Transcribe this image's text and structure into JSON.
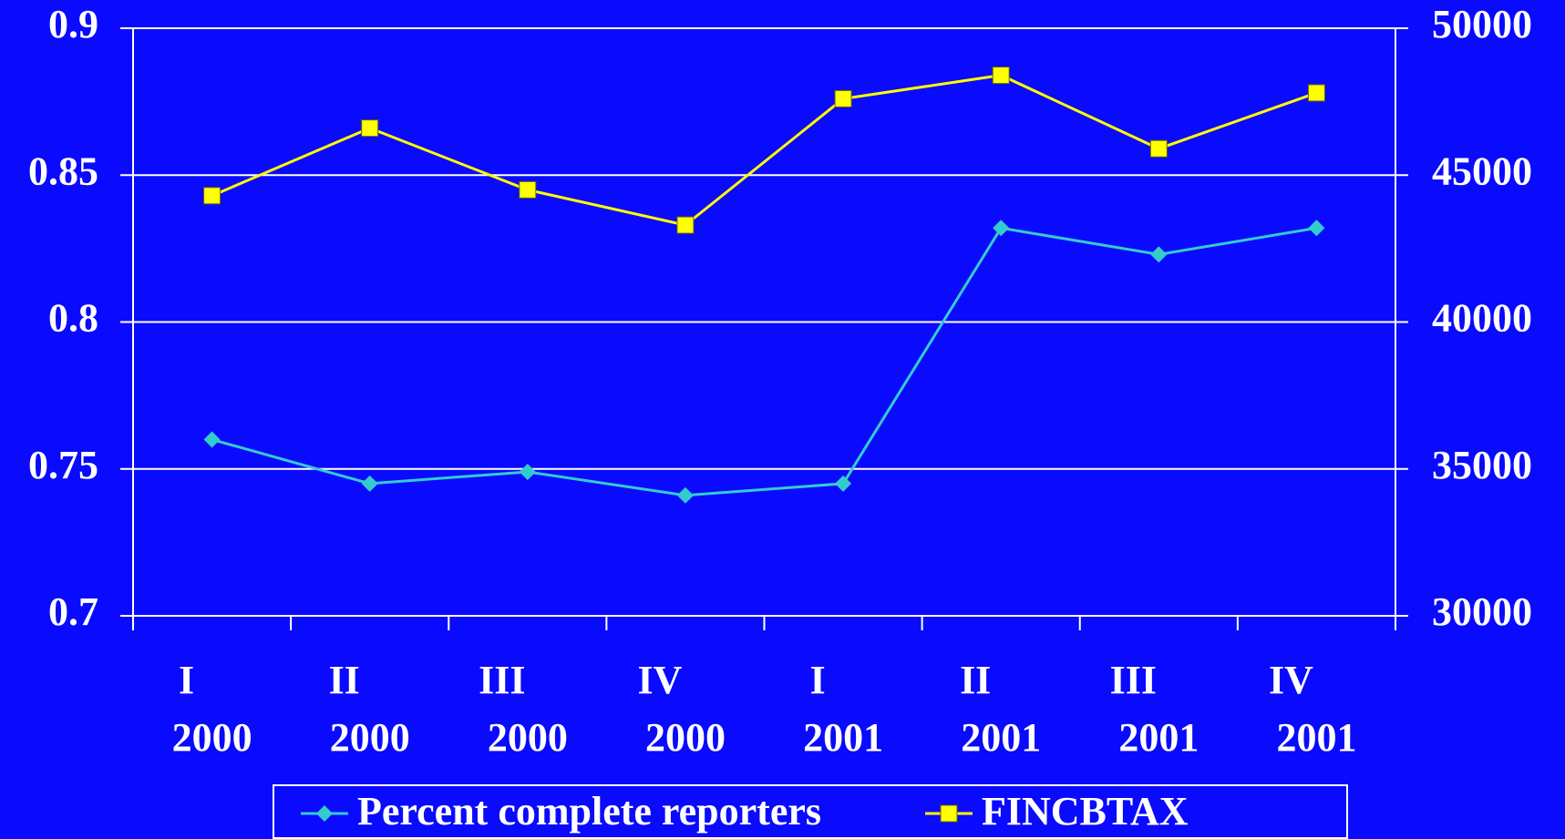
{
  "chart_data": {
    "type": "line",
    "categories": [
      [
        "I",
        "2000"
      ],
      [
        "II",
        "2000"
      ],
      [
        "III",
        "2000"
      ],
      [
        "IV",
        "2000"
      ],
      [
        "I",
        "2001"
      ],
      [
        "II",
        "2001"
      ],
      [
        "III",
        "2001"
      ],
      [
        "IV",
        "2001"
      ]
    ],
    "series": [
      {
        "name": "Percent complete reporters",
        "color": "#33cccc",
        "marker": "diamond",
        "values": [
          0.76,
          0.745,
          0.749,
          0.741,
          0.745,
          0.832,
          0.823,
          0.832
        ]
      },
      {
        "name": "FINCBTAX",
        "color": "#ffff00",
        "marker": "square",
        "axis": "y2",
        "values": [
          44300,
          46600,
          44500,
          43300,
          47600,
          48400,
          45900,
          47800
        ]
      }
    ],
    "ylim": [
      0.7,
      0.9
    ],
    "yticks": [
      0.7,
      0.75,
      0.8,
      0.85,
      0.9
    ],
    "y2lim": [
      30000,
      50000
    ],
    "y2ticks": [
      30000,
      35000,
      40000,
      45000,
      50000
    ],
    "grid": true,
    "legend": "bottom"
  }
}
